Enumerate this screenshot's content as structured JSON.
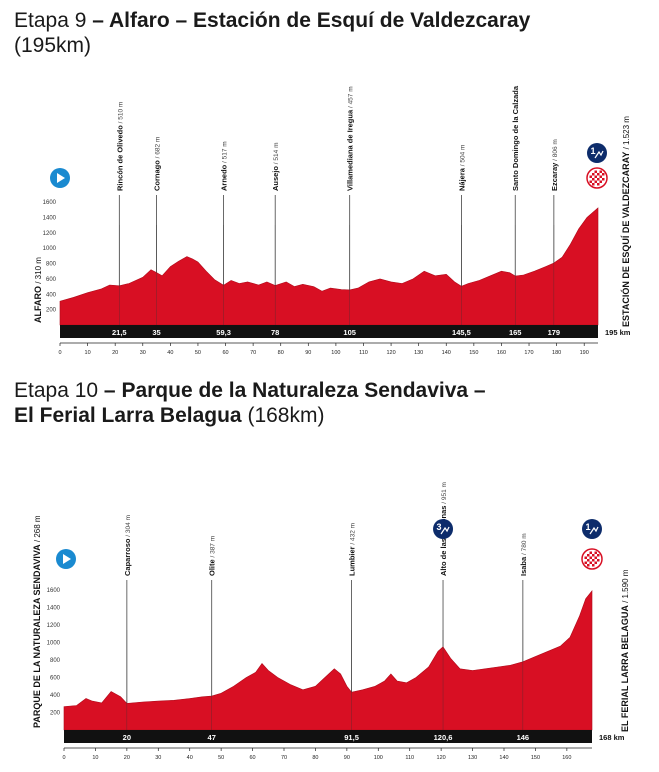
{
  "stages": [
    {
      "number_label": "Etapa 9",
      "dash1": " – ",
      "name_part1": "Alfaro",
      "dash2": " – ",
      "name_part2": "Estación de Esquí de Valdezcaray",
      "distance_text": "(195km)",
      "start_name": "ALFARO",
      "start_alt": "/ 310 m",
      "finish_name": "ESTACIÓN DE ESQUÍ DE VALDEZCARAY",
      "finish_alt": "/ 1.523 m",
      "total_km": 195,
      "total_label": "195 km",
      "x_ticks": [
        0,
        10,
        20,
        30,
        40,
        50,
        60,
        70,
        80,
        90,
        100,
        110,
        120,
        130,
        140,
        150,
        160,
        170,
        180,
        190
      ],
      "y_ticks": [
        200,
        400,
        600,
        800,
        1000,
        1200,
        1400,
        1600
      ],
      "towns": [
        {
          "name": "Rincón de Olivedo",
          "alt": "/ 510 m",
          "km": 21.5,
          "km_label": "21,5"
        },
        {
          "name": "Cornago",
          "alt": "/ 682 m",
          "km": 35,
          "km_label": "35"
        },
        {
          "name": "Arnedo",
          "alt": "/ 517 m",
          "km": 59.3,
          "km_label": "59,3"
        },
        {
          "name": "Ausejo",
          "alt": "/ 514 m",
          "km": 78,
          "km_label": "78"
        },
        {
          "name": "Villamediana de Iregua",
          "alt": "/ 457 m",
          "km": 105,
          "km_label": "105"
        },
        {
          "name": "Nájera",
          "alt": "/ 504 m",
          "km": 145.5,
          "km_label": "145,5"
        },
        {
          "name": "Santo Domingo de la Calzada",
          "alt": "/ 638 m",
          "km": 165,
          "km_label": "165"
        },
        {
          "name": "Ezcaray",
          "alt": "/ 806 m",
          "km": 179,
          "km_label": "179"
        }
      ],
      "climbs": [
        {
          "category": "1",
          "km": 195
        }
      ],
      "profile": [
        [
          0,
          310
        ],
        [
          5,
          360
        ],
        [
          10,
          420
        ],
        [
          15,
          470
        ],
        [
          18,
          520
        ],
        [
          21.5,
          510
        ],
        [
          25,
          540
        ],
        [
          30,
          620
        ],
        [
          33,
          720
        ],
        [
          35,
          682
        ],
        [
          37,
          640
        ],
        [
          40,
          760
        ],
        [
          43,
          830
        ],
        [
          46,
          890
        ],
        [
          48,
          860
        ],
        [
          50,
          820
        ],
        [
          53,
          700
        ],
        [
          56,
          590
        ],
        [
          59.3,
          517
        ],
        [
          62,
          580
        ],
        [
          65,
          540
        ],
        [
          68,
          560
        ],
        [
          72,
          520
        ],
        [
          75,
          560
        ],
        [
          78,
          514
        ],
        [
          82,
          560
        ],
        [
          85,
          500
        ],
        [
          88,
          530
        ],
        [
          92,
          500
        ],
        [
          95,
          440
        ],
        [
          98,
          480
        ],
        [
          102,
          460
        ],
        [
          105,
          457
        ],
        [
          108,
          480
        ],
        [
          112,
          560
        ],
        [
          116,
          600
        ],
        [
          120,
          560
        ],
        [
          124,
          540
        ],
        [
          128,
          600
        ],
        [
          132,
          700
        ],
        [
          136,
          640
        ],
        [
          140,
          660
        ],
        [
          143,
          560
        ],
        [
          145.5,
          504
        ],
        [
          148,
          540
        ],
        [
          152,
          580
        ],
        [
          156,
          640
        ],
        [
          160,
          700
        ],
        [
          163,
          680
        ],
        [
          165,
          638
        ],
        [
          168,
          650
        ],
        [
          172,
          700
        ],
        [
          176,
          760
        ],
        [
          179,
          806
        ],
        [
          182,
          880
        ],
        [
          185,
          1050
        ],
        [
          188,
          1250
        ],
        [
          191,
          1400
        ],
        [
          195,
          1523
        ]
      ]
    },
    {
      "number_label": "Etapa 10",
      "dash1": " – ",
      "name_part1": "Parque de la Naturaleza Sendaviva",
      "dash2": " – ",
      "name_part2": "El Ferial Larra Belagua",
      "distance_text": "(168km)",
      "start_name": "PARQUE DE LA NATURALEZA SENDAVIVA",
      "start_alt": "/ 268 m",
      "finish_name": "EL FERIAL LARRA BELAGUA",
      "finish_alt": "/ 1.590 m",
      "total_km": 168,
      "total_label": "168 km",
      "x_ticks": [
        0,
        10,
        20,
        30,
        40,
        50,
        60,
        70,
        80,
        90,
        100,
        110,
        120,
        130,
        140,
        150,
        160
      ],
      "y_ticks": [
        200,
        400,
        600,
        800,
        1000,
        1200,
        1400,
        1600
      ],
      "towns": [
        {
          "name": "Caparroso",
          "alt": "/ 304 m",
          "km": 20,
          "km_label": "20"
        },
        {
          "name": "Olite",
          "alt": "/ 387 m",
          "km": 47,
          "km_label": "47"
        },
        {
          "name": "Lumbier",
          "alt": "/ 432 m",
          "km": 91.5,
          "km_label": "91,5"
        },
        {
          "name": "Alto de las Coronas",
          "alt": "/ 951 m",
          "km": 120.6,
          "km_label": "120,6"
        },
        {
          "name": "Isaba",
          "alt": "/ 780 m",
          "km": 146,
          "km_label": "146"
        }
      ],
      "climbs": [
        {
          "category": "3",
          "km": 120.6
        },
        {
          "category": "1",
          "km": 168
        }
      ],
      "profile": [
        [
          0,
          268
        ],
        [
          4,
          280
        ],
        [
          7,
          360
        ],
        [
          9,
          330
        ],
        [
          12,
          310
        ],
        [
          15,
          440
        ],
        [
          18,
          380
        ],
        [
          20,
          304
        ],
        [
          25,
          320
        ],
        [
          30,
          330
        ],
        [
          35,
          340
        ],
        [
          40,
          360
        ],
        [
          44,
          380
        ],
        [
          47,
          387
        ],
        [
          50,
          420
        ],
        [
          54,
          500
        ],
        [
          58,
          600
        ],
        [
          61,
          660
        ],
        [
          63,
          760
        ],
        [
          65,
          680
        ],
        [
          68,
          600
        ],
        [
          72,
          520
        ],
        [
          76,
          460
        ],
        [
          80,
          500
        ],
        [
          83,
          600
        ],
        [
          86,
          700
        ],
        [
          88,
          640
        ],
        [
          90,
          500
        ],
        [
          91.5,
          432
        ],
        [
          95,
          460
        ],
        [
          99,
          500
        ],
        [
          102,
          560
        ],
        [
          104,
          640
        ],
        [
          106,
          560
        ],
        [
          109,
          540
        ],
        [
          112,
          600
        ],
        [
          116,
          720
        ],
        [
          119,
          900
        ],
        [
          120.6,
          951
        ],
        [
          123,
          820
        ],
        [
          126,
          700
        ],
        [
          130,
          680
        ],
        [
          134,
          700
        ],
        [
          138,
          720
        ],
        [
          142,
          740
        ],
        [
          146,
          780
        ],
        [
          150,
          840
        ],
        [
          154,
          900
        ],
        [
          158,
          960
        ],
        [
          161,
          1060
        ],
        [
          164,
          1300
        ],
        [
          166,
          1500
        ],
        [
          168,
          1590
        ]
      ]
    }
  ]
}
